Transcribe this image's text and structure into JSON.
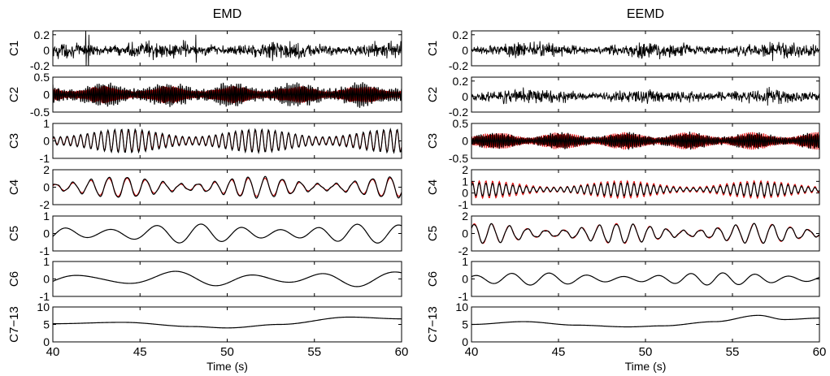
{
  "chart_data": [
    {
      "type": "line",
      "title": "EMD",
      "xlabel": "Time (s)",
      "x_range": [
        40,
        60
      ],
      "x_ticks": [
        "40",
        "45",
        "50",
        "55",
        "60"
      ],
      "colors": {
        "imf": "#000000",
        "reference": "#e00000"
      },
      "rows": [
        {
          "ylabel": "C1",
          "ylim": [
            -0.2,
            0.25
          ],
          "yticks": [
            {
              "v": 0.2,
              "t": "0.2"
            },
            {
              "v": 0,
              "t": "0"
            },
            {
              "v": -0.2,
              "t": "-0.2"
            }
          ],
          "black": {
            "amplitude": 0.07,
            "freq_hz": 40,
            "kind": "noise",
            "spikes": [
              [
                41.9,
                0.28
              ],
              [
                42.05,
                -0.25
              ],
              [
                48.2,
                0.2
              ]
            ]
          },
          "red": null
        },
        {
          "ylabel": "C2",
          "ylim": [
            -0.5,
            0.5
          ],
          "yticks": [
            {
              "v": 0.5,
              "t": "0.5"
            },
            {
              "v": 0,
              "t": "0"
            },
            {
              "v": -0.5,
              "t": "-0.5"
            }
          ],
          "black": {
            "amplitude": 0.32,
            "freq_hz": 9,
            "kind": "burst"
          },
          "red": {
            "amplitude": 0.25,
            "freq_hz": 9
          }
        },
        {
          "ylabel": "C3",
          "ylim": [
            -1,
            1
          ],
          "yticks": [
            {
              "v": 1,
              "t": "1"
            },
            {
              "v": 0,
              "t": "0"
            },
            {
              "v": -1,
              "t": "-1"
            }
          ],
          "black": {
            "amplitude": 0.7,
            "freq_hz": 2.6,
            "kind": "mod"
          },
          "red": {
            "amplitude": 0.62,
            "freq_hz": 2.6
          }
        },
        {
          "ylabel": "C4",
          "ylim": [
            -2,
            2
          ],
          "yticks": [
            {
              "v": 2,
              "t": "2"
            },
            {
              "v": 0,
              "t": "0"
            },
            {
              "v": -2,
              "t": "-2"
            }
          ],
          "black": {
            "amplitude": 1.2,
            "freq_hz": 1.0,
            "kind": "mod"
          },
          "red": {
            "amplitude": 1.05,
            "freq_hz": 1.0
          }
        },
        {
          "ylabel": "C5",
          "ylim": [
            -1,
            1
          ],
          "yticks": [
            {
              "v": 1,
              "t": "1"
            },
            {
              "v": 0,
              "t": "0"
            },
            {
              "v": -1,
              "t": "-1"
            }
          ],
          "black": {
            "amplitude": 0.55,
            "freq_hz": 0.42,
            "kind": "smooth"
          },
          "red": null
        },
        {
          "ylabel": "C6",
          "ylim": [
            -1,
            1
          ],
          "yticks": [
            {
              "v": 1,
              "t": "1"
            },
            {
              "v": 0,
              "t": "0"
            },
            {
              "v": -1,
              "t": "-1"
            }
          ],
          "black": {
            "amplitude": 0.45,
            "freq_hz": 0.22,
            "kind": "smooth"
          },
          "red": null
        },
        {
          "ylabel": "C7−13",
          "ylim": [
            0,
            10
          ],
          "yticks": [
            {
              "v": 10,
              "t": "10"
            },
            {
              "v": 5,
              "t": "5"
            },
            {
              "v": 0,
              "t": "0"
            }
          ],
          "black": {
            "kind": "trend",
            "points": [
              [
                40,
                5.2
              ],
              [
                44,
                5.6
              ],
              [
                48,
                4.4
              ],
              [
                50,
                4.0
              ],
              [
                53,
                5.0
              ],
              [
                57,
                7.1
              ],
              [
                60,
                6.6
              ]
            ]
          },
          "red": null
        }
      ]
    },
    {
      "type": "line",
      "title": "EEMD",
      "xlabel": "Time (s)",
      "x_range": [
        40,
        60
      ],
      "x_ticks": [
        "40",
        "45",
        "50",
        "55",
        "60"
      ],
      "colors": {
        "imf": "#000000",
        "reference": "#e00000"
      },
      "rows": [
        {
          "ylabel": "C1",
          "ylim": [
            -0.2,
            0.25
          ],
          "yticks": [
            {
              "v": 0.2,
              "t": "0.2"
            },
            {
              "v": 0,
              "t": "0"
            },
            {
              "v": -0.2,
              "t": "-0.2"
            }
          ],
          "black": {
            "amplitude": 0.06,
            "freq_hz": 40,
            "kind": "noise"
          },
          "red": null
        },
        {
          "ylabel": "C2",
          "ylim": [
            -0.2,
            0.25
          ],
          "yticks": [
            {
              "v": 0.2,
              "t": "0.2"
            },
            {
              "v": 0,
              "t": "0"
            },
            {
              "v": -0.2,
              "t": "-0.2"
            }
          ],
          "black": {
            "amplitude": 0.06,
            "freq_hz": 18,
            "kind": "noise"
          },
          "red": null
        },
        {
          "ylabel": "C3",
          "ylim": [
            -0.5,
            0.5
          ],
          "yticks": [
            {
              "v": 0.5,
              "t": "0.5"
            },
            {
              "v": 0,
              "t": "0"
            },
            {
              "v": -0.5,
              "t": "-0.5"
            }
          ],
          "black": {
            "amplitude": 0.22,
            "freq_hz": 9,
            "kind": "burst"
          },
          "red": {
            "amplitude": 0.25,
            "freq_hz": 9
          }
        },
        {
          "ylabel": "C4",
          "ylim": [
            -1,
            2
          ],
          "yticks": [
            {
              "v": 2,
              "t": "2"
            },
            {
              "v": 1,
              "t": "1"
            },
            {
              "v": 0,
              "t": "0"
            },
            {
              "v": -1,
              "t": "-1"
            }
          ],
          "black": {
            "amplitude": 0.55,
            "freq_hz": 2.6,
            "kind": "mod",
            "offset": 0.3
          },
          "red": {
            "amplitude": 0.75,
            "freq_hz": 2.6,
            "offset": 0.3
          }
        },
        {
          "ylabel": "C5",
          "ylim": [
            -2,
            2
          ],
          "yticks": [
            {
              "v": 2,
              "t": "2"
            },
            {
              "v": 0,
              "t": "0"
            },
            {
              "v": -2,
              "t": "-2"
            }
          ],
          "black": {
            "amplitude": 1.1,
            "freq_hz": 1.0,
            "kind": "mod"
          },
          "red": {
            "amplitude": 1.15,
            "freq_hz": 1.0
          }
        },
        {
          "ylabel": "C6",
          "ylim": [
            -1,
            1
          ],
          "yticks": [
            {
              "v": 1,
              "t": "1"
            },
            {
              "v": 0,
              "t": "0"
            },
            {
              "v": -1,
              "t": "-1"
            }
          ],
          "black": {
            "amplitude": 0.35,
            "freq_hz": 0.5,
            "kind": "smooth"
          },
          "red": null
        },
        {
          "ylabel": "C7−13",
          "ylim": [
            0,
            10
          ],
          "yticks": [
            {
              "v": 10,
              "t": "10"
            },
            {
              "v": 5,
              "t": "5"
            },
            {
              "v": 0,
              "t": "0"
            }
          ],
          "black": {
            "kind": "trend",
            "points": [
              [
                40,
                5.0
              ],
              [
                43,
                5.8
              ],
              [
                46,
                4.8
              ],
              [
                49,
                4.3
              ],
              [
                51,
                4.6
              ],
              [
                54,
                5.8
              ],
              [
                56.5,
                7.6
              ],
              [
                58,
                6.4
              ],
              [
                60,
                6.8
              ]
            ]
          },
          "red": null
        }
      ]
    }
  ]
}
